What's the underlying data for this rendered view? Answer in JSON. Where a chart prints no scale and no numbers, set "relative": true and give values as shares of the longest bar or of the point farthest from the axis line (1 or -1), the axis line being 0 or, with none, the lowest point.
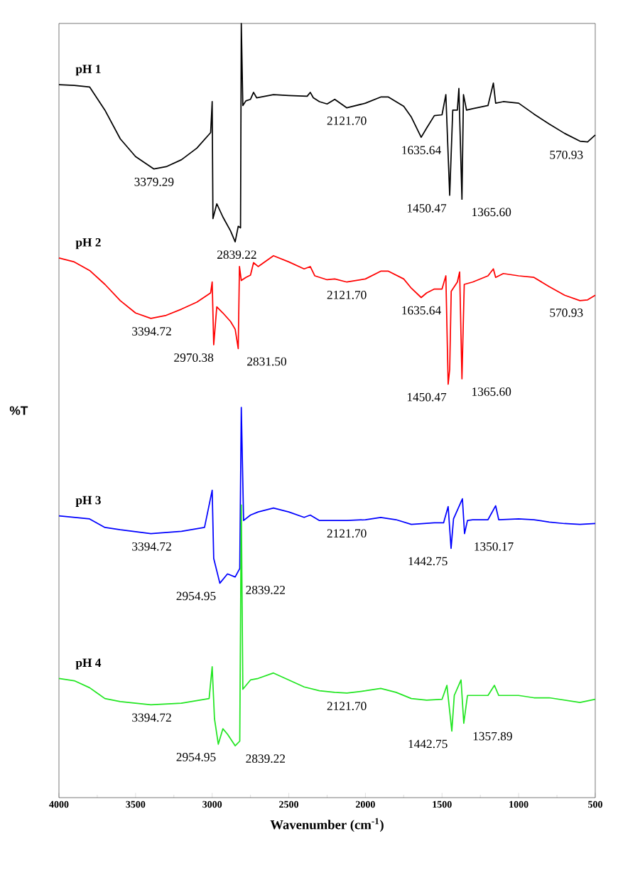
{
  "chart_data": {
    "type": "line",
    "relative": true,
    "xlabel": "Wavenumber (cm$^{-1}$)",
    "ylabel": "%T",
    "xlim": [
      4000,
      500
    ],
    "xticks": [
      4000,
      {
        "value": 3750,
        "label": null
      },
      3500,
      {
        "value": 3250,
        "label": null
      },
      3000,
      {
        "value": 2750,
        "label": null
      },
      2500,
      {
        "value": 2250,
        "label": null
      },
      2000,
      {
        "value": 1750,
        "label": null
      },
      1500,
      {
        "value": 1250,
        "label": null
      },
      1000,
      {
        "value": 750,
        "label": null
      },
      500
    ],
    "series": [
      {
        "name": "pH 1",
        "color": "#000000",
        "x": [
          4000,
          3900,
          3800,
          3700,
          3600,
          3500,
          3380,
          3300,
          3200,
          3100,
          3010,
          3000,
          2995,
          2970,
          2930,
          2880,
          2850,
          2830,
          2815,
          2810,
          2800,
          2780,
          2750,
          2730,
          2710,
          2600,
          2500,
          2380,
          2360,
          2340,
          2300,
          2250,
          2200,
          2121,
          2000,
          1900,
          1850,
          1750,
          1700,
          1636,
          1600,
          1550,
          1500,
          1475,
          1450,
          1430,
          1400,
          1390,
          1370,
          1360,
          1340,
          1300,
          1200,
          1165,
          1150,
          1100,
          1000,
          900,
          800,
          700,
          600,
          550,
          500
        ],
        "values": [
          0.921,
          0.92,
          0.918,
          0.888,
          0.851,
          0.828,
          0.812,
          0.815,
          0.824,
          0.839,
          0.859,
          0.899,
          0.748,
          0.767,
          0.75,
          0.732,
          0.718,
          0.738,
          0.736,
          1.0,
          0.894,
          0.9,
          0.902,
          0.911,
          0.904,
          0.908,
          0.907,
          0.906,
          0.911,
          0.904,
          0.899,
          0.896,
          0.902,
          0.891,
          0.897,
          0.905,
          0.905,
          0.893,
          0.879,
          0.853,
          0.865,
          0.881,
          0.882,
          0.908,
          0.778,
          0.888,
          0.888,
          0.916,
          0.773,
          0.908,
          0.888,
          0.89,
          0.894,
          0.923,
          0.897,
          0.899,
          0.897,
          0.883,
          0.87,
          0.858,
          0.848,
          0.847,
          0.856
        ]
      },
      {
        "name": "pH 2",
        "color": "#ff0000",
        "x": [
          4000,
          3900,
          3800,
          3700,
          3600,
          3500,
          3400,
          3300,
          3200,
          3100,
          3010,
          3000,
          2990,
          2970,
          2930,
          2880,
          2850,
          2830,
          2822,
          2810,
          2780,
          2750,
          2730,
          2700,
          2600,
          2500,
          2400,
          2360,
          2330,
          2250,
          2200,
          2121,
          2000,
          1900,
          1850,
          1750,
          1700,
          1636,
          1600,
          1550,
          1500,
          1475,
          1460,
          1450,
          1440,
          1400,
          1385,
          1370,
          1355,
          1300,
          1200,
          1165,
          1150,
          1100,
          1000,
          900,
          800,
          700,
          600,
          550,
          500
        ],
        "values": [
          0.697,
          0.692,
          0.681,
          0.663,
          0.642,
          0.626,
          0.619,
          0.623,
          0.631,
          0.64,
          0.652,
          0.666,
          0.585,
          0.634,
          0.626,
          0.615,
          0.605,
          0.58,
          0.686,
          0.668,
          0.672,
          0.675,
          0.691,
          0.686,
          0.7,
          0.692,
          0.683,
          0.686,
          0.674,
          0.669,
          0.67,
          0.666,
          0.67,
          0.68,
          0.68,
          0.67,
          0.658,
          0.646,
          0.652,
          0.657,
          0.657,
          0.674,
          0.534,
          0.553,
          0.654,
          0.666,
          0.679,
          0.541,
          0.663,
          0.666,
          0.674,
          0.683,
          0.672,
          0.677,
          0.674,
          0.672,
          0.66,
          0.649,
          0.642,
          0.643,
          0.649
        ]
      },
      {
        "name": "pH 3",
        "color": "#0000ff",
        "x": [
          4000,
          3800,
          3700,
          3600,
          3400,
          3200,
          3050,
          3000,
          2990,
          2950,
          2900,
          2850,
          2820,
          2810,
          2795,
          2750,
          2700,
          2600,
          2500,
          2400,
          2360,
          2300,
          2121,
          2000,
          1900,
          1800,
          1700,
          1550,
          1490,
          1460,
          1441,
          1425,
          1367,
          1353,
          1334,
          1300,
          1200,
          1150,
          1130,
          1000,
          900,
          800,
          700,
          600,
          500
        ],
        "values": [
          0.364,
          0.36,
          0.349,
          0.346,
          0.341,
          0.344,
          0.349,
          0.397,
          0.309,
          0.277,
          0.289,
          0.285,
          0.296,
          0.504,
          0.358,
          0.365,
          0.369,
          0.374,
          0.369,
          0.362,
          0.365,
          0.358,
          0.358,
          0.359,
          0.362,
          0.359,
          0.353,
          0.355,
          0.355,
          0.376,
          0.322,
          0.36,
          0.386,
          0.341,
          0.358,
          0.359,
          0.359,
          0.377,
          0.359,
          0.36,
          0.359,
          0.356,
          0.354,
          0.353,
          0.354
        ]
      },
      {
        "name": "pH 4",
        "color": "#22e622",
        "x": [
          4000,
          3900,
          3800,
          3750,
          3700,
          3600,
          3400,
          3200,
          3020,
          3000,
          2985,
          2960,
          2930,
          2900,
          2850,
          2820,
          2810,
          2800,
          2750,
          2700,
          2600,
          2500,
          2400,
          2300,
          2200,
          2121,
          2000,
          1900,
          1800,
          1700,
          1600,
          1500,
          1468,
          1436,
          1420,
          1376,
          1358,
          1334,
          1300,
          1200,
          1158,
          1130,
          1000,
          900,
          800,
          700,
          600,
          500
        ],
        "values": [
          0.154,
          0.151,
          0.142,
          0.135,
          0.128,
          0.124,
          0.12,
          0.122,
          0.128,
          0.169,
          0.102,
          0.069,
          0.089,
          0.082,
          0.067,
          0.073,
          0.378,
          0.14,
          0.152,
          0.154,
          0.161,
          0.152,
          0.143,
          0.138,
          0.136,
          0.135,
          0.138,
          0.141,
          0.136,
          0.128,
          0.126,
          0.127,
          0.145,
          0.086,
          0.132,
          0.152,
          0.096,
          0.132,
          0.132,
          0.132,
          0.145,
          0.132,
          0.132,
          0.129,
          0.129,
          0.126,
          0.123,
          0.127
        ]
      }
    ],
    "annotations": [
      {
        "text": "3379.29",
        "x": 3379.29,
        "y": 0.812
      },
      {
        "text": "2839.22",
        "x": 2839.22,
        "y": 0.718
      },
      {
        "text": "2121.70",
        "x": 2121.7,
        "y": 0.891
      },
      {
        "text": "1635.64",
        "x": 1635.64,
        "y": 0.853
      },
      {
        "text": "1450.47",
        "x": 1450.47,
        "y": 0.778
      },
      {
        "text": "1365.60",
        "x": 1365.6,
        "y": 0.773
      },
      {
        "text": "570.93",
        "x": 570.93,
        "y": 0.847
      },
      {
        "text": "3394.72",
        "x": 3394.72,
        "y": 0.619
      },
      {
        "text": "2970.38",
        "x": 2970.38,
        "y": 0.585
      },
      {
        "text": "2831.50",
        "x": 2831.5,
        "y": 0.58
      },
      {
        "text": "2121.70",
        "x": 2121.7,
        "y": 0.666
      },
      {
        "text": "1635.64",
        "x": 1635.64,
        "y": 0.646
      },
      {
        "text": "1450.47",
        "x": 1450.47,
        "y": 0.534
      },
      {
        "text": "1365.60",
        "x": 1365.6,
        "y": 0.541
      },
      {
        "text": "570.93",
        "x": 570.93,
        "y": 0.643
      },
      {
        "text": "3394.72",
        "x": 3394.72,
        "y": 0.341
      },
      {
        "text": "2954.95",
        "x": 2954.95,
        "y": 0.277
      },
      {
        "text": "2839.22",
        "x": 2839.22,
        "y": 0.285
      },
      {
        "text": "2121.70",
        "x": 2121.7,
        "y": 0.358
      },
      {
        "text": "1442.75",
        "x": 1442.75,
        "y": 0.322
      },
      {
        "text": "1350.17",
        "x": 1350.17,
        "y": 0.341
      },
      {
        "text": "3394.72",
        "x": 3394.72,
        "y": 0.12
      },
      {
        "text": "2954.95",
        "x": 2954.95,
        "y": 0.069
      },
      {
        "text": "2839.22",
        "x": 2839.22,
        "y": 0.067
      },
      {
        "text": "2121.70",
        "x": 2121.7,
        "y": 0.135
      },
      {
        "text": "1442.75",
        "x": 1442.75,
        "y": 0.086
      },
      {
        "text": "1357.89",
        "x": 1357.89,
        "y": 0.096
      }
    ]
  }
}
